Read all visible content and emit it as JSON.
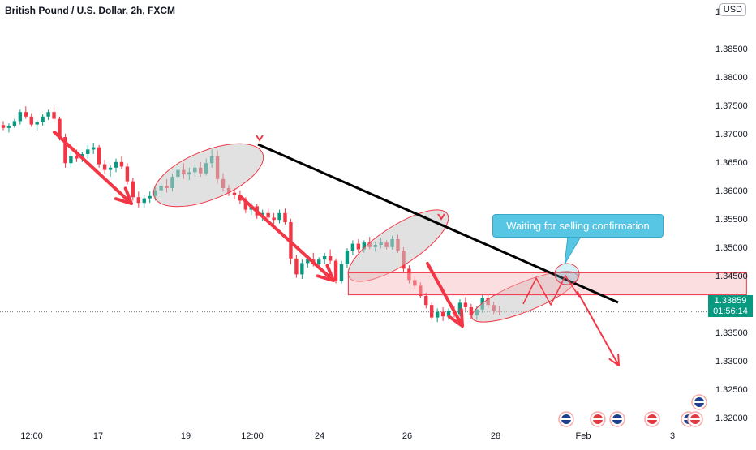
{
  "header": {
    "symbol_title": "British Pound / U.S. Dollar, 2h, FXCM",
    "currency_button": "USD"
  },
  "chart_data": {
    "type": "candlestick",
    "title": "British Pound / U.S. Dollar, 2h, FXCM",
    "y_axis": {
      "ticks": [
        "1.38500",
        "1.38000",
        "1.37500",
        "1.37000",
        "1.36500",
        "1.36000",
        "1.35500",
        "1.35000",
        "1.34500",
        "1.34000",
        "1.33500",
        "1.33000",
        "1.32500",
        "1.32000"
      ],
      "tick_values": [
        1.385,
        1.38,
        1.375,
        1.37,
        1.365,
        1.36,
        1.355,
        1.35,
        1.345,
        1.34,
        1.335,
        1.33,
        1.325,
        1.32
      ],
      "range": [
        1.3164,
        1.3914
      ],
      "top_partial_tick": "1.3"
    },
    "x_axis": {
      "ticks": [
        "12:00",
        "17",
        "19",
        "12:00",
        "24",
        "26",
        "28",
        "Feb",
        "3"
      ]
    },
    "current_price": {
      "value": "1.33859",
      "countdown": "01:56:14"
    },
    "annotation_text": "Waiting for selling confirmation",
    "candles": [
      [
        1.3715,
        1.3722,
        1.3706,
        1.371
      ],
      [
        1.371,
        1.3718,
        1.3702,
        1.3714
      ],
      [
        1.3714,
        1.3726,
        1.371,
        1.3722
      ],
      [
        1.3722,
        1.3742,
        1.3716,
        1.3738
      ],
      [
        1.3738,
        1.3748,
        1.3726,
        1.373
      ],
      [
        1.373,
        1.3736,
        1.3712,
        1.3716
      ],
      [
        1.3716,
        1.3724,
        1.3706,
        1.372
      ],
      [
        1.372,
        1.3734,
        1.3714,
        1.373
      ],
      [
        1.373,
        1.3742,
        1.3724,
        1.3738
      ],
      [
        1.3738,
        1.3746,
        1.3722,
        1.3726
      ],
      [
        1.3726,
        1.373,
        1.3688,
        1.3694
      ],
      [
        1.3694,
        1.37,
        1.364,
        1.3648
      ],
      [
        1.3648,
        1.3668,
        1.364,
        1.366
      ],
      [
        1.366,
        1.3672,
        1.365,
        1.3656
      ],
      [
        1.3656,
        1.3668,
        1.365,
        1.3664
      ],
      [
        1.3664,
        1.368,
        1.3656,
        1.3672
      ],
      [
        1.3672,
        1.3684,
        1.3664,
        1.3676
      ],
      [
        1.3676,
        1.368,
        1.364,
        1.3646
      ],
      [
        1.3646,
        1.3654,
        1.363,
        1.3636
      ],
      [
        1.3636,
        1.3644,
        1.3624,
        1.364
      ],
      [
        1.364,
        1.3656,
        1.3632,
        1.365
      ],
      [
        1.365,
        1.366,
        1.3638,
        1.3642
      ],
      [
        1.3642,
        1.3648,
        1.361,
        1.3616
      ],
      [
        1.3616,
        1.3622,
        1.3582,
        1.3588
      ],
      [
        1.3588,
        1.3598,
        1.357,
        1.3578
      ],
      [
        1.3578,
        1.3592,
        1.357,
        1.3586
      ],
      [
        1.3586,
        1.3598,
        1.3578,
        1.359
      ],
      [
        1.359,
        1.3606,
        1.3582,
        1.36
      ],
      [
        1.36,
        1.3614,
        1.3592,
        1.3608
      ],
      [
        1.3608,
        1.362,
        1.3596,
        1.3604
      ],
      [
        1.3604,
        1.363,
        1.3598,
        1.3624
      ],
      [
        1.3624,
        1.3644,
        1.3616,
        1.3636
      ],
      [
        1.3636,
        1.3648,
        1.362,
        1.3628
      ],
      [
        1.3628,
        1.364,
        1.3618,
        1.3632
      ],
      [
        1.3632,
        1.3646,
        1.3624,
        1.364
      ],
      [
        1.364,
        1.365,
        1.3624,
        1.363
      ],
      [
        1.363,
        1.3656,
        1.3626,
        1.3648
      ],
      [
        1.3648,
        1.3672,
        1.364,
        1.366
      ],
      [
        1.366,
        1.367,
        1.3612,
        1.362
      ],
      [
        1.362,
        1.363,
        1.3598,
        1.3604
      ],
      [
        1.3604,
        1.361,
        1.359,
        1.3596
      ],
      [
        1.3596,
        1.3604,
        1.3584,
        1.3592
      ],
      [
        1.3592,
        1.36,
        1.3576,
        1.3582
      ],
      [
        1.3582,
        1.3588,
        1.356,
        1.3566
      ],
      [
        1.3566,
        1.3578,
        1.3556,
        1.3572
      ],
      [
        1.3572,
        1.3576,
        1.355,
        1.3556
      ],
      [
        1.3556,
        1.3566,
        1.3546,
        1.356
      ],
      [
        1.356,
        1.3568,
        1.3548,
        1.3552
      ],
      [
        1.3552,
        1.356,
        1.354,
        1.3548
      ],
      [
        1.3548,
        1.3566,
        1.3542,
        1.356
      ],
      [
        1.356,
        1.3568,
        1.354,
        1.3544
      ],
      [
        1.3544,
        1.355,
        1.347,
        1.348
      ],
      [
        1.348,
        1.3486,
        1.3446,
        1.3452
      ],
      [
        1.3452,
        1.3478,
        1.3444,
        1.3472
      ],
      [
        1.3472,
        1.3486,
        1.3464,
        1.3478
      ],
      [
        1.3478,
        1.349,
        1.3466,
        1.347
      ],
      [
        1.347,
        1.3482,
        1.3462,
        1.3478
      ],
      [
        1.3478,
        1.349,
        1.347,
        1.3484
      ],
      [
        1.3484,
        1.3496,
        1.347,
        1.3476
      ],
      [
        1.3476,
        1.348,
        1.3436,
        1.344
      ],
      [
        1.344,
        1.3476,
        1.3436,
        1.347
      ],
      [
        1.347,
        1.3498,
        1.3464,
        1.3494
      ],
      [
        1.3494,
        1.3512,
        1.3486,
        1.3506
      ],
      [
        1.3506,
        1.3514,
        1.349,
        1.3496
      ],
      [
        1.3496,
        1.3512,
        1.349,
        1.3508
      ],
      [
        1.3508,
        1.3518,
        1.3496,
        1.35
      ],
      [
        1.35,
        1.351,
        1.3492,
        1.3504
      ],
      [
        1.3504,
        1.3516,
        1.3498,
        1.3508
      ],
      [
        1.3508,
        1.3512,
        1.3496,
        1.35
      ],
      [
        1.35,
        1.352,
        1.3496,
        1.3514
      ],
      [
        1.3514,
        1.3522,
        1.349,
        1.3494
      ],
      [
        1.3494,
        1.35,
        1.3456,
        1.3462
      ],
      [
        1.3462,
        1.3468,
        1.3436,
        1.3442
      ],
      [
        1.3442,
        1.3448,
        1.3426,
        1.3432
      ],
      [
        1.3432,
        1.3438,
        1.341,
        1.3414
      ],
      [
        1.3414,
        1.342,
        1.3392,
        1.3398
      ],
      [
        1.3398,
        1.3402,
        1.3372,
        1.3376
      ],
      [
        1.3376,
        1.3392,
        1.3368,
        1.3386
      ],
      [
        1.3386,
        1.3394,
        1.337,
        1.3378
      ],
      [
        1.3378,
        1.3392,
        1.3372,
        1.3388
      ],
      [
        1.3388,
        1.3396,
        1.3376,
        1.3382
      ],
      [
        1.3382,
        1.3408,
        1.3378,
        1.3402
      ],
      [
        1.3402,
        1.3412,
        1.3388,
        1.3394
      ],
      [
        1.3394,
        1.34,
        1.3374,
        1.338
      ],
      [
        1.338,
        1.3396,
        1.3372,
        1.339
      ],
      [
        1.339,
        1.3416,
        1.3384,
        1.341
      ],
      [
        1.341,
        1.3418,
        1.3392,
        1.3398
      ],
      [
        1.3398,
        1.3404,
        1.3382,
        1.3388
      ],
      [
        1.3388,
        1.3396,
        1.338,
        1.3386
      ]
    ],
    "trendline": {
      "from": [
        58,
        1.3666
      ],
      "to": [
        135,
        1.3387
      ]
    },
    "support_zone": {
      "x_from": 52,
      "x_to": 133,
      "y_low": 1.3436,
      "y_high": 1.3452
    },
    "sell_targets": [
      "1.3304"
    ]
  },
  "colors": {
    "up_candle": "#089981",
    "down_candle": "#f23645",
    "arrow": "#f23645",
    "trendline": "#000000",
    "ellipse_fill": "#c8c8c8",
    "ellipse_stroke": "#f23645",
    "zone_fill": "#f6b7bb",
    "callout_fill": "#56c6e4",
    "price_tag": "#089981"
  },
  "event_icons": [
    "uk-flag-icon",
    "us-flag-icon",
    "uk-flag-icon",
    "us-flag-icon",
    "uk-flag-icon",
    "us-flag-icon",
    "uk-flag-icon",
    "us-flag-icon"
  ]
}
